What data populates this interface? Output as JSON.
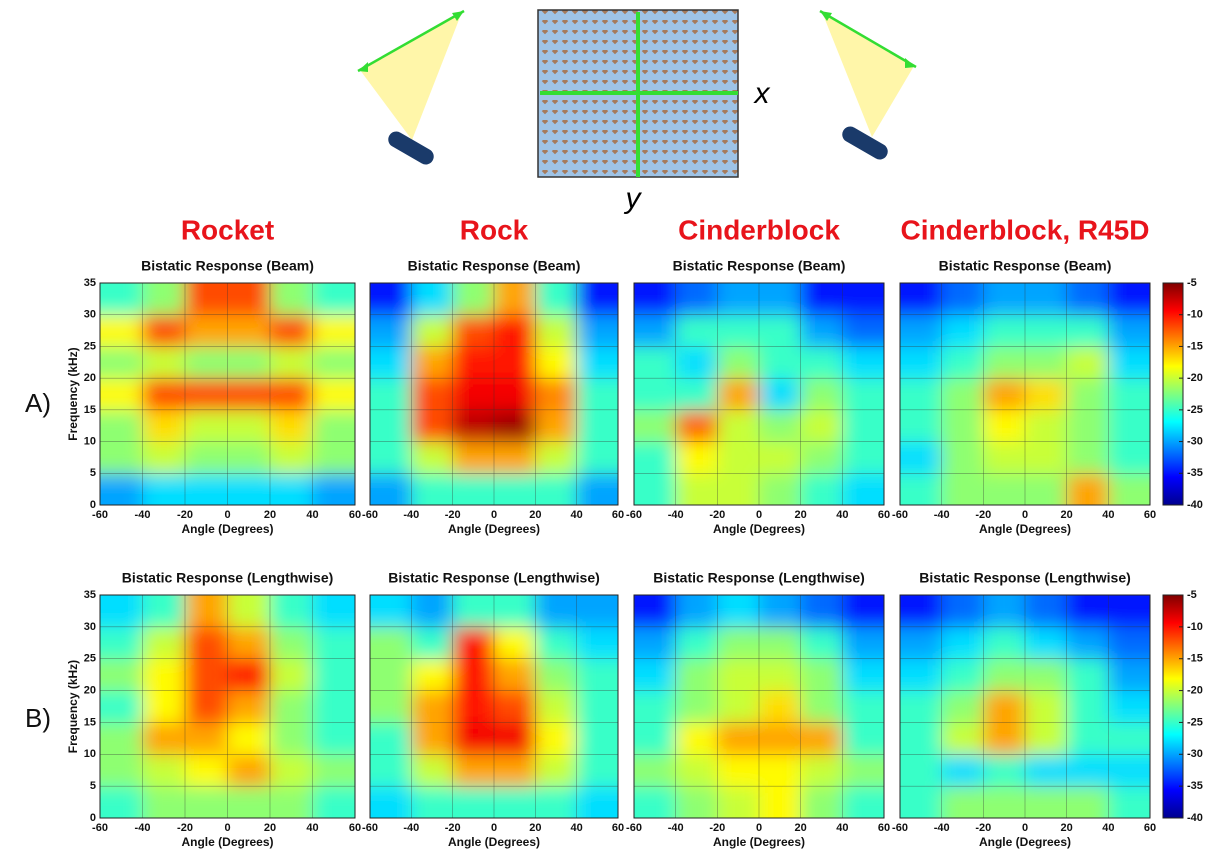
{
  "diagram": {
    "x_label": "x",
    "y_label": "y"
  },
  "column_titles": [
    "Rocket",
    "Rock",
    "Cinderblock",
    "Cinderblock, R45D"
  ],
  "row_labels": [
    "A)",
    "B)"
  ],
  "colorbar": {
    "clim": [
      -40,
      -5
    ],
    "ticks": [
      -5,
      -10,
      -15,
      -20,
      -25,
      -30,
      -35,
      -40
    ]
  },
  "chart_data": [
    {
      "type": "heatmap",
      "title": "Bistatic Response (Beam)",
      "xlabel": "Angle (Degrees)",
      "ylabel": "Frequency (kHz)",
      "xlim": [
        -60,
        60
      ],
      "xticks": [
        -60,
        -40,
        -20,
        0,
        20,
        40,
        60
      ],
      "ylim": [
        0,
        35
      ],
      "yticks": [
        0,
        5,
        10,
        15,
        20,
        25,
        30,
        35
      ],
      "z": [
        [
          -30,
          -28,
          -28,
          -28,
          -28,
          -30
        ],
        [
          -22,
          -20,
          -22,
          -22,
          -20,
          -22
        ],
        [
          -22,
          -17,
          -20,
          -20,
          -17,
          -22
        ],
        [
          -18,
          -12,
          -12,
          -12,
          -12,
          -18
        ],
        [
          -22,
          -20,
          -22,
          -22,
          -20,
          -22
        ],
        [
          -18,
          -12,
          -15,
          -15,
          -12,
          -18
        ],
        [
          -25,
          -22,
          -12,
          -12,
          -22,
          -25
        ]
      ]
    },
    {
      "type": "heatmap",
      "title": "Bistatic Response (Beam)",
      "xlabel": "Angle (Degrees)",
      "xlim": [
        -60,
        60
      ],
      "xticks": [
        -60,
        -40,
        -20,
        0,
        20,
        40,
        60
      ],
      "ylim": [
        0,
        35
      ],
      "yticks": [
        0,
        5,
        10,
        15,
        20,
        25,
        30,
        35
      ],
      "z": [
        [
          -30,
          -25,
          -25,
          -25,
          -25,
          -30
        ],
        [
          -25,
          -20,
          -15,
          -15,
          -20,
          -25
        ],
        [
          -25,
          -12,
          -7,
          -6,
          -15,
          -25
        ],
        [
          -25,
          -12,
          -9,
          -9,
          -14,
          -25
        ],
        [
          -28,
          -15,
          -10,
          -10,
          -18,
          -28
        ],
        [
          -30,
          -20,
          -12,
          -10,
          -20,
          -30
        ],
        [
          -35,
          -28,
          -22,
          -15,
          -25,
          -35
        ]
      ]
    },
    {
      "type": "heatmap",
      "title": "Bistatic Response (Beam)",
      "xlabel": "Angle (Degrees)",
      "xlim": [
        -60,
        60
      ],
      "xticks": [
        -60,
        -40,
        -20,
        0,
        20,
        40,
        60
      ],
      "ylim": [
        0,
        35
      ],
      "yticks": [
        0,
        5,
        10,
        15,
        20,
        25,
        30,
        35
      ],
      "z": [
        [
          -25,
          -20,
          -20,
          -22,
          -25,
          -28
        ],
        [
          -25,
          -18,
          -20,
          -20,
          -22,
          -25
        ],
        [
          -22,
          -13,
          -20,
          -22,
          -20,
          -25
        ],
        [
          -25,
          -25,
          -15,
          -28,
          -22,
          -25
        ],
        [
          -25,
          -28,
          -22,
          -25,
          -25,
          -28
        ],
        [
          -30,
          -25,
          -25,
          -25,
          -30,
          -32
        ],
        [
          -35,
          -32,
          -30,
          -30,
          -35,
          -35
        ]
      ]
    },
    {
      "type": "heatmap",
      "title": "Bistatic Response (Beam)",
      "xlabel": "Angle (Degrees)",
      "xlim": [
        -60,
        60
      ],
      "xticks": [
        -60,
        -40,
        -20,
        0,
        20,
        40,
        60
      ],
      "ylim": [
        0,
        35
      ],
      "yticks": [
        0,
        5,
        10,
        15,
        20,
        25,
        30,
        35
      ],
      "z": [
        [
          -25,
          -22,
          -22,
          -22,
          -15,
          -22
        ],
        [
          -28,
          -22,
          -20,
          -20,
          -22,
          -25
        ],
        [
          -25,
          -22,
          -18,
          -20,
          -22,
          -25
        ],
        [
          -25,
          -22,
          -15,
          -17,
          -22,
          -25
        ],
        [
          -28,
          -25,
          -22,
          -22,
          -20,
          -28
        ],
        [
          -30,
          -28,
          -25,
          -25,
          -25,
          -30
        ],
        [
          -35,
          -32,
          -30,
          -30,
          -32,
          -35
        ]
      ]
    },
    {
      "type": "heatmap",
      "title": "Bistatic Response (Lengthwise)",
      "xlabel": "Angle (Degrees)",
      "ylabel": "Frequency (kHz)",
      "xlim": [
        -60,
        60
      ],
      "xticks": [
        -60,
        -40,
        -20,
        0,
        20,
        40,
        60
      ],
      "ylim": [
        0,
        35
      ],
      "yticks": [
        0,
        5,
        10,
        15,
        20,
        25,
        30,
        35
      ],
      "z": [
        [
          -25,
          -22,
          -22,
          -22,
          -22,
          -25
        ],
        [
          -22,
          -20,
          -18,
          -15,
          -20,
          -22
        ],
        [
          -22,
          -15,
          -15,
          -18,
          -22,
          -25
        ],
        [
          -25,
          -18,
          -12,
          -15,
          -22,
          -25
        ],
        [
          -22,
          -18,
          -12,
          -10,
          -20,
          -25
        ],
        [
          -25,
          -20,
          -12,
          -15,
          -22,
          -25
        ],
        [
          -28,
          -25,
          -15,
          -20,
          -25,
          -28
        ]
      ]
    },
    {
      "type": "heatmap",
      "title": "Bistatic Response (Lengthwise)",
      "xlabel": "Angle (Degrees)",
      "xlim": [
        -60,
        60
      ],
      "xticks": [
        -60,
        -40,
        -20,
        0,
        20,
        40,
        60
      ],
      "ylim": [
        0,
        35
      ],
      "yticks": [
        0,
        5,
        10,
        15,
        20,
        25,
        30,
        35
      ],
      "z": [
        [
          -28,
          -25,
          -25,
          -25,
          -25,
          -28
        ],
        [
          -25,
          -20,
          -15,
          -15,
          -20,
          -25
        ],
        [
          -25,
          -15,
          -9,
          -9,
          -18,
          -25
        ],
        [
          -22,
          -15,
          -10,
          -12,
          -20,
          -25
        ],
        [
          -22,
          -18,
          -10,
          -15,
          -22,
          -25
        ],
        [
          -22,
          -25,
          -10,
          -18,
          -25,
          -28
        ],
        [
          -28,
          -30,
          -25,
          -25,
          -30,
          -30
        ]
      ]
    },
    {
      "type": "heatmap",
      "title": "Bistatic Response (Lengthwise)",
      "xlabel": "Angle (Degrees)",
      "xlim": [
        -60,
        60
      ],
      "xticks": [
        -60,
        -40,
        -20,
        0,
        20,
        40,
        60
      ],
      "ylim": [
        0,
        35
      ],
      "yticks": [
        0,
        5,
        10,
        15,
        20,
        25,
        30,
        35
      ],
      "z": [
        [
          -25,
          -22,
          -20,
          -18,
          -22,
          -25
        ],
        [
          -22,
          -20,
          -18,
          -18,
          -20,
          -22
        ],
        [
          -25,
          -18,
          -15,
          -15,
          -15,
          -25
        ],
        [
          -25,
          -22,
          -20,
          -17,
          -22,
          -25
        ],
        [
          -28,
          -22,
          -20,
          -20,
          -22,
          -28
        ],
        [
          -30,
          -25,
          -22,
          -22,
          -25,
          -30
        ],
        [
          -35,
          -30,
          -28,
          -30,
          -32,
          -35
        ]
      ]
    },
    {
      "type": "heatmap",
      "title": "Bistatic Response (Lengthwise)",
      "xlabel": "Angle (Degrees)",
      "xlim": [
        -60,
        60
      ],
      "xticks": [
        -60,
        -40,
        -20,
        0,
        20,
        40,
        60
      ],
      "ylim": [
        0,
        35
      ],
      "yticks": [
        0,
        5,
        10,
        15,
        20,
        25,
        30,
        35
      ],
      "z": [
        [
          -25,
          -22,
          -22,
          -22,
          -22,
          -25
        ],
        [
          -25,
          -28,
          -25,
          -28,
          -28,
          -28
        ],
        [
          -25,
          -20,
          -15,
          -20,
          -25,
          -25
        ],
        [
          -25,
          -22,
          -15,
          -20,
          -25,
          -28
        ],
        [
          -28,
          -25,
          -22,
          -22,
          -25,
          -30
        ],
        [
          -30,
          -28,
          -25,
          -28,
          -30,
          -32
        ],
        [
          -35,
          -32,
          -30,
          -32,
          -35,
          -35
        ]
      ]
    }
  ]
}
